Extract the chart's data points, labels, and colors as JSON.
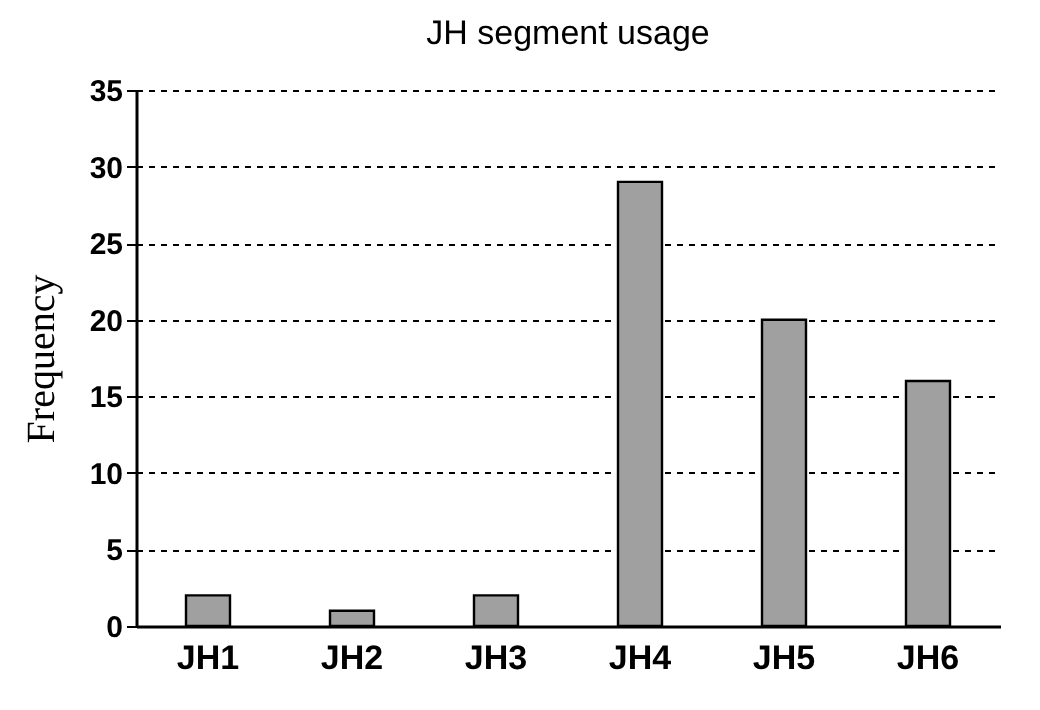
{
  "chart_data": {
    "type": "bar",
    "title": "JH segment usage",
    "ylabel": "Frequency",
    "categories": [
      "JH1",
      "JH2",
      "JH3",
      "JH4",
      "JH5",
      "JH6"
    ],
    "values": [
      2,
      1,
      2,
      29,
      20,
      16
    ],
    "color": "#a0a0a0",
    "ylim": [
      0,
      35
    ],
    "yticks": [
      0,
      5,
      10,
      15,
      20,
      25,
      30,
      35
    ],
    "grid": "y"
  }
}
